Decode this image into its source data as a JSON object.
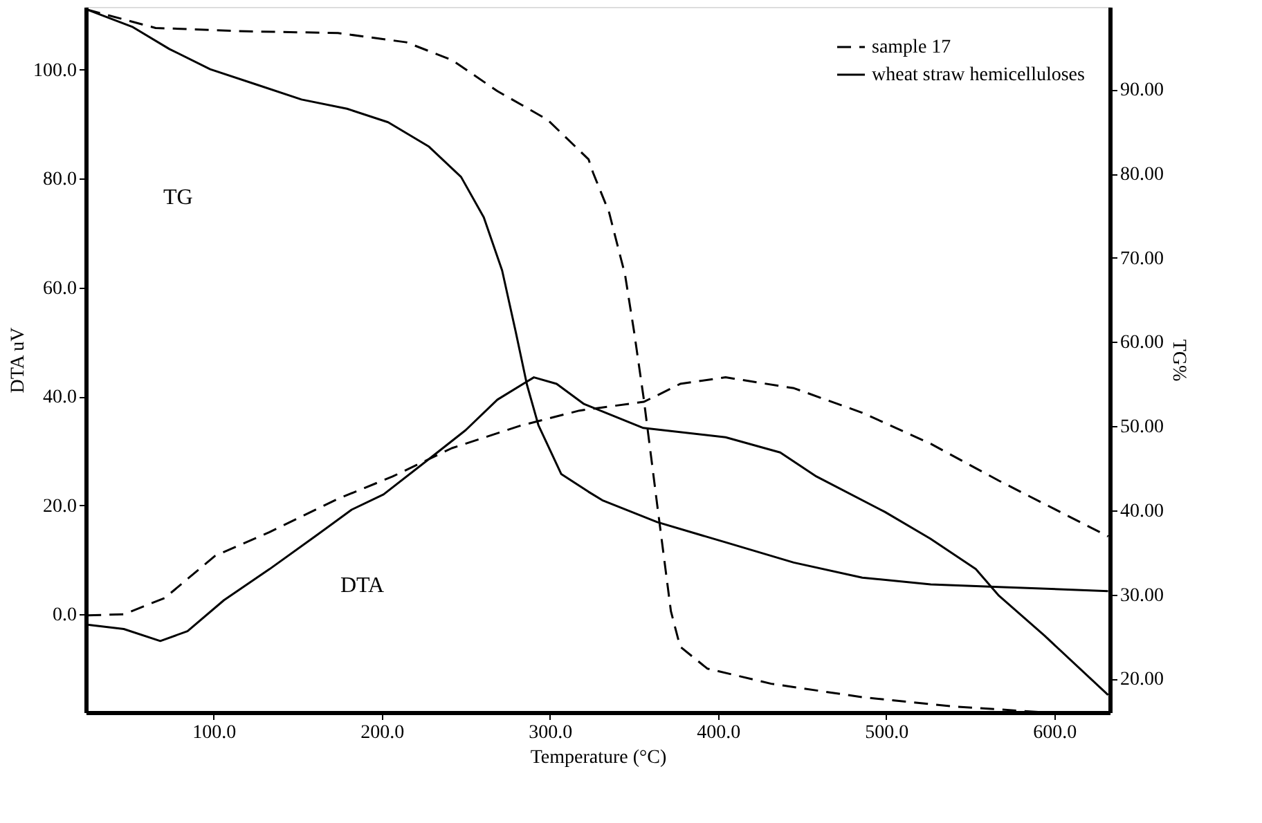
{
  "chart_data": {
    "type": "line",
    "xlabel": "Temperature (°C)",
    "ylabel": "DTA uV",
    "y2label": "TG%",
    "xlim": [
      24,
      633
    ],
    "ylim": [
      -18,
      111.5
    ],
    "y2lim": [
      16,
      99.8
    ],
    "xticks": [
      {
        "value": 100,
        "label": "100.0"
      },
      {
        "value": 200,
        "label": "200.0"
      },
      {
        "value": 300,
        "label": "300.0"
      },
      {
        "value": 400,
        "label": "400.0"
      },
      {
        "value": 500,
        "label": "500.0"
      },
      {
        "value": 600,
        "label": "600.0"
      }
    ],
    "yticks": [
      {
        "value": 0,
        "label": "0.0"
      },
      {
        "value": 20,
        "label": "20.0"
      },
      {
        "value": 40,
        "label": "40.0"
      },
      {
        "value": 60,
        "label": "60.0"
      },
      {
        "value": 80,
        "label": "80.0"
      },
      {
        "value": 100,
        "label": "100.0"
      }
    ],
    "y2ticks": [
      {
        "value": 20,
        "label": "20.00"
      },
      {
        "value": 30,
        "label": "30.00"
      },
      {
        "value": 40,
        "label": "40.00"
      },
      {
        "value": 50,
        "label": "50.00"
      },
      {
        "value": 60,
        "label": "60.00"
      },
      {
        "value": 70,
        "label": "70.00"
      },
      {
        "value": 80,
        "label": "80.00"
      },
      {
        "value": 90,
        "label": "90.00"
      }
    ],
    "grid": false,
    "legend": "top right",
    "series": [
      {
        "name": "sample 17",
        "color": "#000000",
        "axis": "y2",
        "line_style": "dashed",
        "x": [
          24.5,
          65.5,
          119.8,
          174,
          214.6,
          241.7,
          268.8,
          298.6,
          323,
          325.7,
          335.2,
          344.7,
          350.1,
          355.8,
          363.8,
          372,
          377.5,
          393.6,
          431.6,
          485.8,
          540,
          594
        ],
        "values": [
          99.5,
          97.3,
          96.9,
          96.7,
          95.6,
          93.5,
          89.8,
          86.4,
          81.7,
          80.1,
          75.4,
          68,
          61.2,
          53.3,
          40.7,
          28,
          23.8,
          21.2,
          19.4,
          17.8,
          16.7,
          16
        ]
      },
      {
        "name": "wheat straw hemicelluloses",
        "color": "#000000",
        "axis": "y2",
        "line_style": "solid",
        "x": [
          24.5,
          52,
          73.7,
          98,
          125.2,
          152.3,
          179.4,
          203.8,
          228.1,
          247.2,
          260.7,
          271.6,
          279.7,
          286.4,
          293.2,
          306.8,
          323,
          331.2,
          363.8,
          404.5,
          445,
          485.8,
          526.5,
          567.1,
          632
        ],
        "values": [
          99.5,
          97.4,
          94.8,
          92.4,
          90.6,
          88.8,
          87.7,
          86.1,
          83.2,
          79.6,
          74.8,
          68.5,
          61.2,
          54.9,
          50.1,
          44.3,
          42.2,
          41.2,
          38.6,
          36.2,
          33.8,
          32,
          31.2,
          30.9,
          30.4
        ]
      },
      {
        "color": "#000000",
        "line_style": "dashed",
        "x": [
          24.9,
          46.6,
          71,
          100.8,
          133.3,
          174,
          206.5,
          241.7,
          282.3,
          317.6,
          355.8,
          363.9,
          377.5,
          404.5,
          445.2,
          485.8,
          526.5,
          567.2,
          632
        ],
        "values": [
          -0.2,
          0,
          3,
          10.7,
          15.1,
          21.2,
          25.3,
          30.5,
          34.6,
          37.4,
          39,
          40.2,
          42.3,
          43.5,
          41.5,
          37,
          31.3,
          24.5,
          14.3
        ]
      },
      {
        "color": "#000000",
        "line_style": "solid",
        "x": [
          24.9,
          46.6,
          68.3,
          84.5,
          106.2,
          133.3,
          160.4,
          182.1,
          201.1,
          228.1,
          249.9,
          268.8,
          290.5,
          304,
          320.3,
          355.6,
          404.5,
          437,
          458.5,
          499.2,
          526.2,
          553.3,
          567.1,
          594.1,
          632
        ],
        "values": [
          -1.9,
          -2.7,
          -4.9,
          -3.1,
          2.6,
          8.3,
          14.3,
          19.2,
          22,
          28.5,
          33.8,
          39.4,
          43.5,
          42.3,
          38.6,
          34.2,
          32.5,
          29.7,
          25.3,
          18.8,
          13.9,
          8.3,
          3.4,
          -3.9,
          -14.8
        ]
      }
    ],
    "annotations": [
      "TG",
      "DTA"
    ]
  }
}
